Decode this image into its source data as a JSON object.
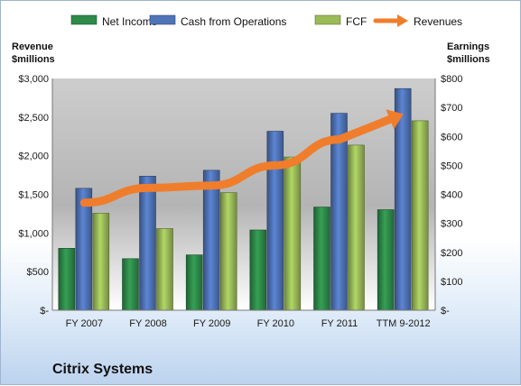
{
  "chart_data": {
    "type": "bar",
    "title": "Citrix Systems",
    "categories": [
      "FY 2007",
      "FY 2008",
      "FY 2009",
      "FY 2010",
      "FY 2011",
      "TTM 9-2012"
    ],
    "series": [
      {
        "name": "Net Income",
        "axis": "right",
        "kind": "bar",
        "color": "#2e8b4a",
        "values": [
          214,
          178,
          191,
          277,
          356,
          347
        ]
      },
      {
        "name": "Cash from Operations",
        "axis": "right",
        "kind": "bar",
        "color": "#5074b8",
        "values": [
          421,
          463,
          483,
          618,
          680,
          765
        ]
      },
      {
        "name": "FCF",
        "axis": "right",
        "kind": "bar",
        "color": "#9bbb59",
        "values": [
          335,
          282,
          406,
          529,
          570,
          654
        ]
      },
      {
        "name": "Revenues",
        "axis": "left",
        "kind": "line-arrow",
        "color": "#f07d2b",
        "values": [
          1392,
          1583,
          1614,
          1875,
          2211,
          2540
        ]
      }
    ],
    "left_axis": {
      "title_lines": [
        "Revenue",
        "$millions"
      ],
      "ylim": [
        0,
        3000
      ],
      "ticks": [
        0,
        500,
        1000,
        1500,
        2000,
        2500,
        3000
      ],
      "tick_labels": [
        "$-",
        "$500",
        "$1,000",
        "$1,500",
        "$2,000",
        "$2,500",
        "$3,000"
      ]
    },
    "right_axis": {
      "title_lines": [
        "Earnings",
        "$millions"
      ],
      "ylim": [
        0,
        800
      ],
      "ticks": [
        0,
        100,
        200,
        300,
        400,
        500,
        600,
        700,
        800
      ],
      "tick_labels": [
        "$-",
        "$100",
        "$200",
        "$300",
        "$400",
        "$500",
        "$600",
        "$700",
        "$800"
      ]
    },
    "legend": {
      "placement": "top"
    },
    "grid": false
  }
}
